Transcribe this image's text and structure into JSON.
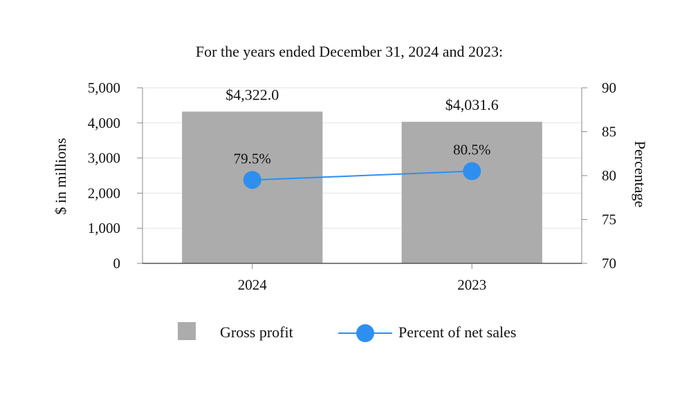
{
  "chart_data": {
    "type": "bar",
    "title": "For the years ended December 31, 2024 and 2023:",
    "categories": [
      "2024",
      "2023"
    ],
    "ylabel": "$ in millions",
    "y2label": "Percentage",
    "ylim": [
      0,
      5000
    ],
    "y2lim": [
      70,
      90
    ],
    "yticks": [
      "0",
      "1,000",
      "2,000",
      "3,000",
      "4,000",
      "5,000"
    ],
    "y2ticks": [
      "70",
      "75",
      "80",
      "85",
      "90"
    ],
    "grid": true,
    "legend_position": "bottom",
    "series": [
      {
        "name": "Gross profit",
        "type": "bar",
        "axis": "left",
        "values": [
          4322.0,
          4031.6
        ],
        "labels": [
          "$4,322.0",
          "$4,031.6"
        ],
        "color": "#acacac"
      },
      {
        "name": "Percent of net sales",
        "type": "line",
        "axis": "right",
        "values": [
          79.5,
          80.5
        ],
        "labels": [
          "79.5%",
          "80.5%"
        ],
        "color": "#2e8ff0"
      }
    ]
  }
}
